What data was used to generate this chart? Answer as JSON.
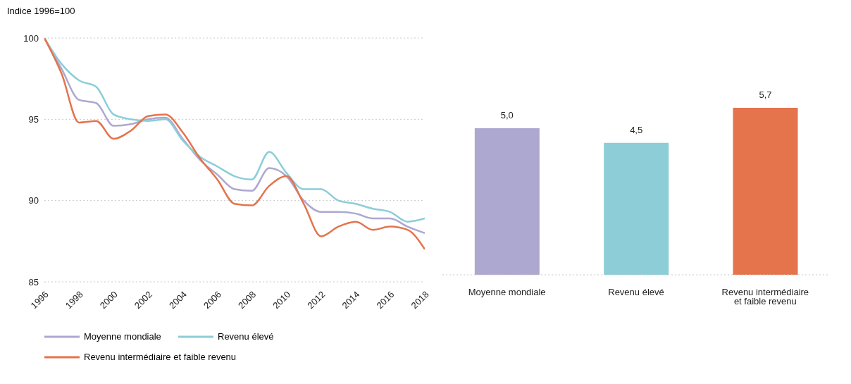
{
  "chart_data": [
    {
      "type": "line",
      "ylabel": "Indice 1996=100",
      "x": [
        1996,
        1997,
        1998,
        1999,
        2000,
        2001,
        2002,
        2003,
        2004,
        2005,
        2006,
        2007,
        2008,
        2009,
        2010,
        2011,
        2012,
        2013,
        2014,
        2015,
        2016,
        2017,
        2018
      ],
      "series": [
        {
          "name": "Moyenne mondiale",
          "color": "#ada8d0",
          "values": [
            100,
            98.1,
            96.2,
            96.0,
            94.6,
            94.7,
            95.0,
            95.1,
            93.8,
            92.5,
            91.6,
            90.7,
            90.6,
            92.0,
            91.5,
            90.0,
            89.3,
            89.3,
            89.2,
            88.9,
            88.9,
            88.4,
            88.0
          ]
        },
        {
          "name": "Revenu élevé",
          "color": "#8ccdd8",
          "values": [
            100,
            98.4,
            97.4,
            97.0,
            95.3,
            95.0,
            94.9,
            95.0,
            93.7,
            92.7,
            92.1,
            91.5,
            91.3,
            93.0,
            91.7,
            90.7,
            90.7,
            90.0,
            89.8,
            89.5,
            89.3,
            88.7,
            88.9
          ]
        },
        {
          "name": "Revenu intermédiaire et faible revenu",
          "color": "#e5734b",
          "values": [
            100,
            97.8,
            94.8,
            94.9,
            93.8,
            94.3,
            95.2,
            95.3,
            94.2,
            92.6,
            91.3,
            89.8,
            89.7,
            90.9,
            91.5,
            89.8,
            87.8,
            88.4,
            88.7,
            88.2,
            88.4,
            88.2,
            87.0
          ]
        }
      ],
      "xlim": [
        1996,
        2018
      ],
      "xticks": [
        1996,
        1998,
        2000,
        2002,
        2004,
        2006,
        2008,
        2010,
        2012,
        2014,
        2016,
        2018
      ],
      "ylim": [
        85,
        100
      ],
      "yticks": [
        85,
        90,
        95,
        100
      ],
      "grid": "y",
      "legend": "bottom",
      "marker": "none"
    },
    {
      "type": "bar",
      "categories": [
        "Moyenne mondiale",
        "Revenu élevé",
        "Revenu intermédiaire et faible revenu"
      ],
      "values": [
        5.0,
        4.5,
        5.7
      ],
      "colors": [
        "#ada8d0",
        "#8ccdd8",
        "#e5734b"
      ],
      "value_labels": [
        "5,0",
        "4,5",
        "5,7"
      ]
    }
  ]
}
